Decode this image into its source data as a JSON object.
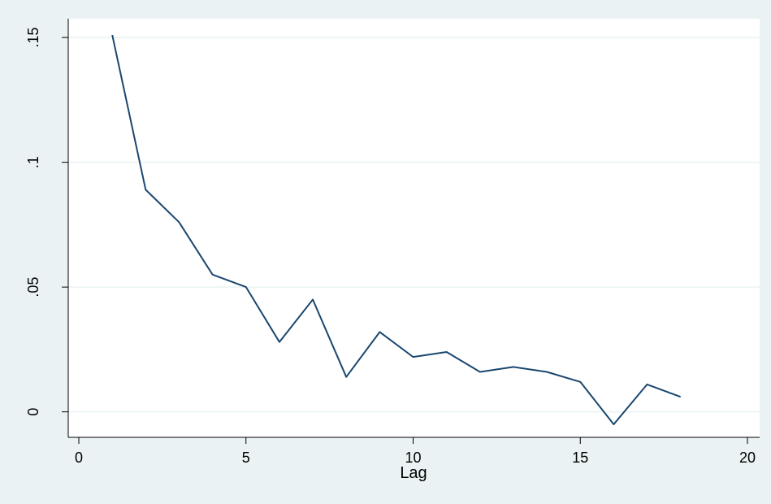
{
  "chart_data": {
    "type": "line",
    "title": "",
    "xlabel": "Lag",
    "ylabel": "",
    "xlim": [
      0,
      20
    ],
    "ylim": [
      -0.005,
      0.152
    ],
    "x_ticks": [
      0,
      5,
      10,
      15,
      20
    ],
    "x_tick_labels": [
      "0",
      "5",
      "10",
      "15",
      "20"
    ],
    "y_ticks": [
      0,
      0.05,
      0.1,
      0.15
    ],
    "y_tick_labels": [
      "0",
      ".05",
      ".1",
      ".15"
    ],
    "grid": "horizontal",
    "legend": "none",
    "colors": {
      "background": "#eaf2f3",
      "plot_area": "#ffffff",
      "line": "#1a476f",
      "grid": "#eaf2f3"
    },
    "series": [
      {
        "x": [
          1,
          2,
          3,
          4,
          5,
          6,
          7,
          8,
          9,
          10,
          11,
          12,
          13,
          14,
          15,
          16,
          17,
          18
        ],
        "values": [
          0.151,
          0.089,
          0.076,
          0.055,
          0.05,
          0.028,
          0.045,
          0.014,
          0.032,
          0.022,
          0.024,
          0.016,
          0.018,
          0.016,
          0.012,
          -0.005,
          0.011,
          0.006
        ]
      }
    ]
  }
}
